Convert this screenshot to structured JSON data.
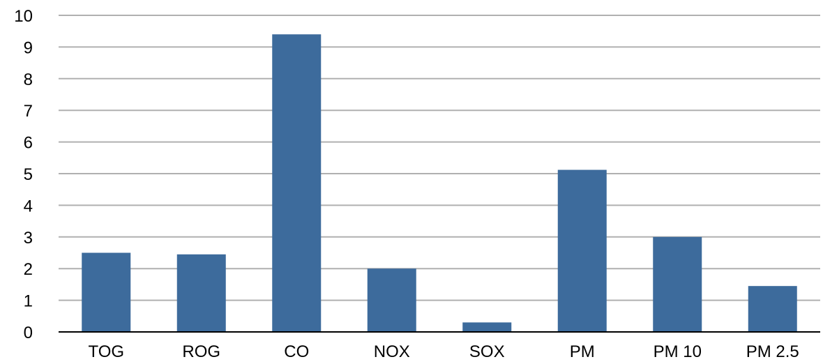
{
  "chart_data": {
    "type": "bar",
    "title": "",
    "xlabel": "",
    "ylabel": "",
    "categories": [
      "TOG",
      "ROG",
      "CO",
      "NOX",
      "SOX",
      "PM",
      "PM 10",
      "PM 2.5"
    ],
    "values": [
      2.5,
      2.45,
      9.4,
      2.0,
      0.3,
      5.12,
      3.0,
      1.45
    ],
    "ylim": [
      0,
      10
    ],
    "yticks": [
      "0",
      "1",
      "2",
      "3",
      "4",
      "5",
      "6",
      "7",
      "8",
      "9",
      "10"
    ],
    "grid": true,
    "legend": "none",
    "colors": {
      "bar": "#3d6b9c",
      "grid": "#b0b0b0",
      "axis": "#000000"
    }
  }
}
